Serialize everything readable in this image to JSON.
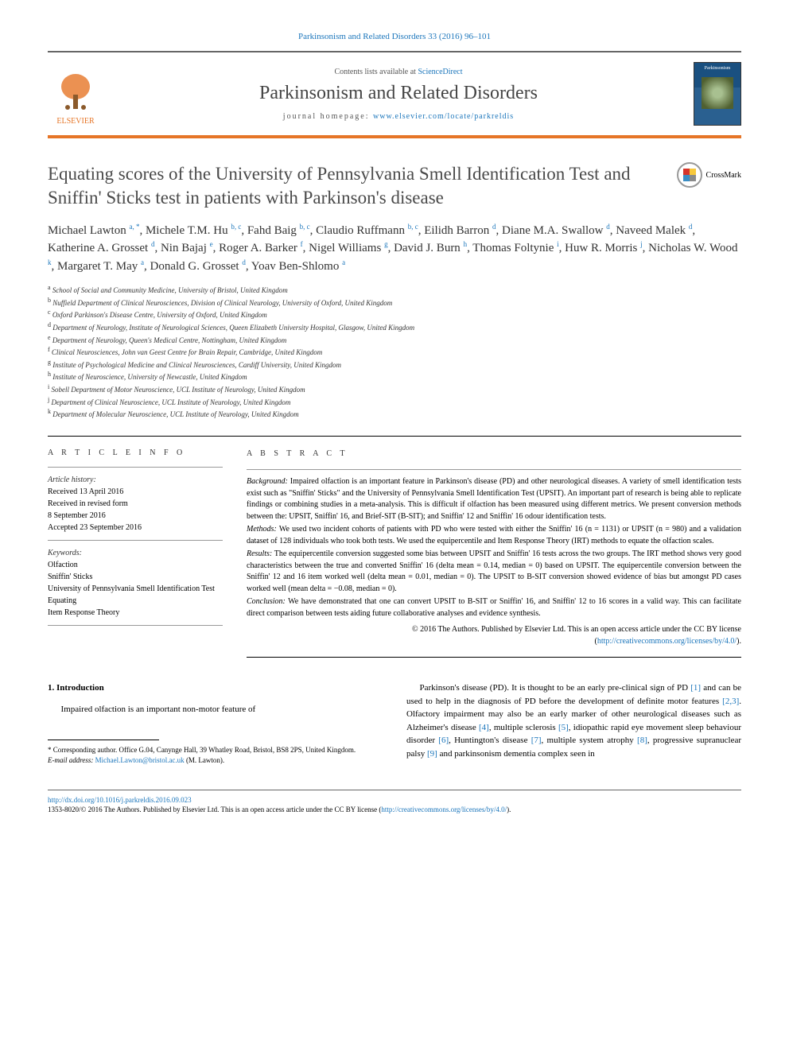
{
  "journal_ref": "Parkinsonism and Related Disorders 33 (2016) 96–101",
  "header": {
    "contents_prefix": "Contents lists available at ",
    "contents_link": "ScienceDirect",
    "journal_title": "Parkinsonism and Related Disorders",
    "homepage_prefix": "journal homepage: ",
    "homepage_url": "www.elsevier.com/locate/parkreldis",
    "elsevier_label": "ELSEVIER",
    "cover_label": "Parkinsonism"
  },
  "crossmark_label": "CrossMark",
  "title": "Equating scores of the University of Pennsylvania Smell Identification Test and Sniffin' Sticks test in patients with Parkinson's disease",
  "authors_html": "Michael Lawton <sup>a, *</sup>, Michele T.M. Hu <sup>b, c</sup>, Fahd Baig <sup>b, c</sup>, Claudio Ruffmann <sup>b, c</sup>, Eilidh Barron <sup>d</sup>, Diane M.A. Swallow <sup>d</sup>, Naveed Malek <sup>d</sup>, Katherine A. Grosset <sup>d</sup>, Nin Bajaj <sup>e</sup>, Roger A. Barker <sup>f</sup>, Nigel Williams <sup>g</sup>, David J. Burn <sup>h</sup>, Thomas Foltynie <sup>i</sup>, Huw R. Morris <sup>j</sup>, Nicholas W. Wood <sup>k</sup>, Margaret T. May <sup>a</sup>, Donald G. Grosset <sup>d</sup>, Yoav Ben-Shlomo <sup>a</sup>",
  "affiliations": [
    {
      "key": "a",
      "text": "School of Social and Community Medicine, University of Bristol, United Kingdom"
    },
    {
      "key": "b",
      "text": "Nuffield Department of Clinical Neurosciences, Division of Clinical Neurology, University of Oxford, United Kingdom"
    },
    {
      "key": "c",
      "text": "Oxford Parkinson's Disease Centre, University of Oxford, United Kingdom"
    },
    {
      "key": "d",
      "text": "Department of Neurology, Institute of Neurological Sciences, Queen Elizabeth University Hospital, Glasgow, United Kingdom"
    },
    {
      "key": "e",
      "text": "Department of Neurology, Queen's Medical Centre, Nottingham, United Kingdom"
    },
    {
      "key": "f",
      "text": "Clinical Neurosciences, John van Geest Centre for Brain Repair, Cambridge, United Kingdom"
    },
    {
      "key": "g",
      "text": "Institute of Psychological Medicine and Clinical Neurosciences, Cardiff University, United Kingdom"
    },
    {
      "key": "h",
      "text": "Institute of Neuroscience, University of Newcastle, United Kingdom"
    },
    {
      "key": "i",
      "text": "Sobell Department of Motor Neuroscience, UCL Institute of Neurology, United Kingdom"
    },
    {
      "key": "j",
      "text": "Department of Clinical Neuroscience, UCL Institute of Neurology, United Kingdom"
    },
    {
      "key": "k",
      "text": "Department of Molecular Neuroscience, UCL Institute of Neurology, United Kingdom"
    }
  ],
  "article_info": {
    "heading": "A R T I C L E   I N F O",
    "history_label": "Article history:",
    "history": [
      "Received 13 April 2016",
      "Received in revised form",
      "8 September 2016",
      "Accepted 23 September 2016"
    ],
    "keywords_label": "Keywords:",
    "keywords": [
      "Olfaction",
      "Sniffin' Sticks",
      "University of Pennsylvania Smell Identification Test",
      "Equating",
      "Item Response Theory"
    ]
  },
  "abstract": {
    "heading": "A B S T R A C T",
    "background_label": "Background:",
    "background": " Impaired olfaction is an important feature in Parkinson's disease (PD) and other neurological diseases. A variety of smell identification tests exist such as \"Sniffin' Sticks\" and the University of Pennsylvania Smell Identification Test (UPSIT). An important part of research is being able to replicate findings or combining studies in a meta-analysis. This is difficult if olfaction has been measured using different metrics. We present conversion methods between the: UPSIT, Sniffin' 16, and Brief-SIT (B-SIT); and Sniffin' 12 and Sniffin' 16 odour identification tests.",
    "methods_label": "Methods:",
    "methods": " We used two incident cohorts of patients with PD who were tested with either the Sniffin' 16 (n = 1131) or UPSIT (n = 980) and a validation dataset of 128 individuals who took both tests. We used the equipercentile and Item Response Theory (IRT) methods to equate the olfaction scales.",
    "results_label": "Results:",
    "results": " The equipercentile conversion suggested some bias between UPSIT and Sniffin' 16 tests across the two groups. The IRT method shows very good characteristics between the true and converted Sniffin' 16 (delta mean = 0.14, median = 0) based on UPSIT. The equipercentile conversion between the Sniffin' 12 and 16 item worked well (delta mean = 0.01, median = 0). The UPSIT to B-SIT conversion showed evidence of bias but amongst PD cases worked well (mean delta = −0.08, median = 0).",
    "conclusion_label": "Conclusion:",
    "conclusion": " We have demonstrated that one can convert UPSIT to B-SIT or Sniffin' 16, and Sniffin' 12 to 16 scores in a valid way. This can facilitate direct comparison between tests aiding future collaborative analyses and evidence synthesis.",
    "copyright": "© 2016 The Authors. Published by Elsevier Ltd. This is an open access article under the CC BY license",
    "license_url": "http://creativecommons.org/licenses/by/4.0/"
  },
  "body": {
    "section_heading": "1. Introduction",
    "col1_para": "Impaired olfaction is an important non-motor feature of",
    "col2_para": "Parkinson's disease (PD). It is thought to be an early pre-clinical sign of PD <span class='ref-link'>[1]</span> and can be used to help in the diagnosis of PD before the development of definite motor features <span class='ref-link'>[2,3]</span>. Olfactory impairment may also be an early marker of other neurological diseases such as Alzheimer's disease <span class='ref-link'>[4]</span>, multiple sclerosis <span class='ref-link'>[5]</span>, idiopathic rapid eye movement sleep behaviour disorder <span class='ref-link'>[6]</span>, Huntington's disease <span class='ref-link'>[7]</span>, multiple system atrophy <span class='ref-link'>[8]</span>, progressive supranuclear palsy <span class='ref-link'>[9]</span> and parkinsonism dementia complex seen in"
  },
  "footnotes": {
    "corresponding": "* Corresponding author. Office G.04, Canynge Hall, 39 Whatley Road, Bristol, BS8 2PS, United Kingdom.",
    "email_label": "E-mail address:",
    "email": "Michael.Lawton@bristol.ac.uk",
    "email_suffix": " (M. Lawton)."
  },
  "footer": {
    "doi": "http://dx.doi.org/10.1016/j.parkreldis.2016.09.023",
    "issn_line": "1353-8020/© 2016 The Authors. Published by Elsevier Ltd. This is an open access article under the CC BY license (",
    "license_url": "http://creativecommons.org/licenses/by/4.0/",
    "close": ")."
  },
  "colors": {
    "link": "#1a75bb",
    "accent": "#e67527",
    "text": "#000000",
    "heading_gray": "#4a4a4a"
  }
}
